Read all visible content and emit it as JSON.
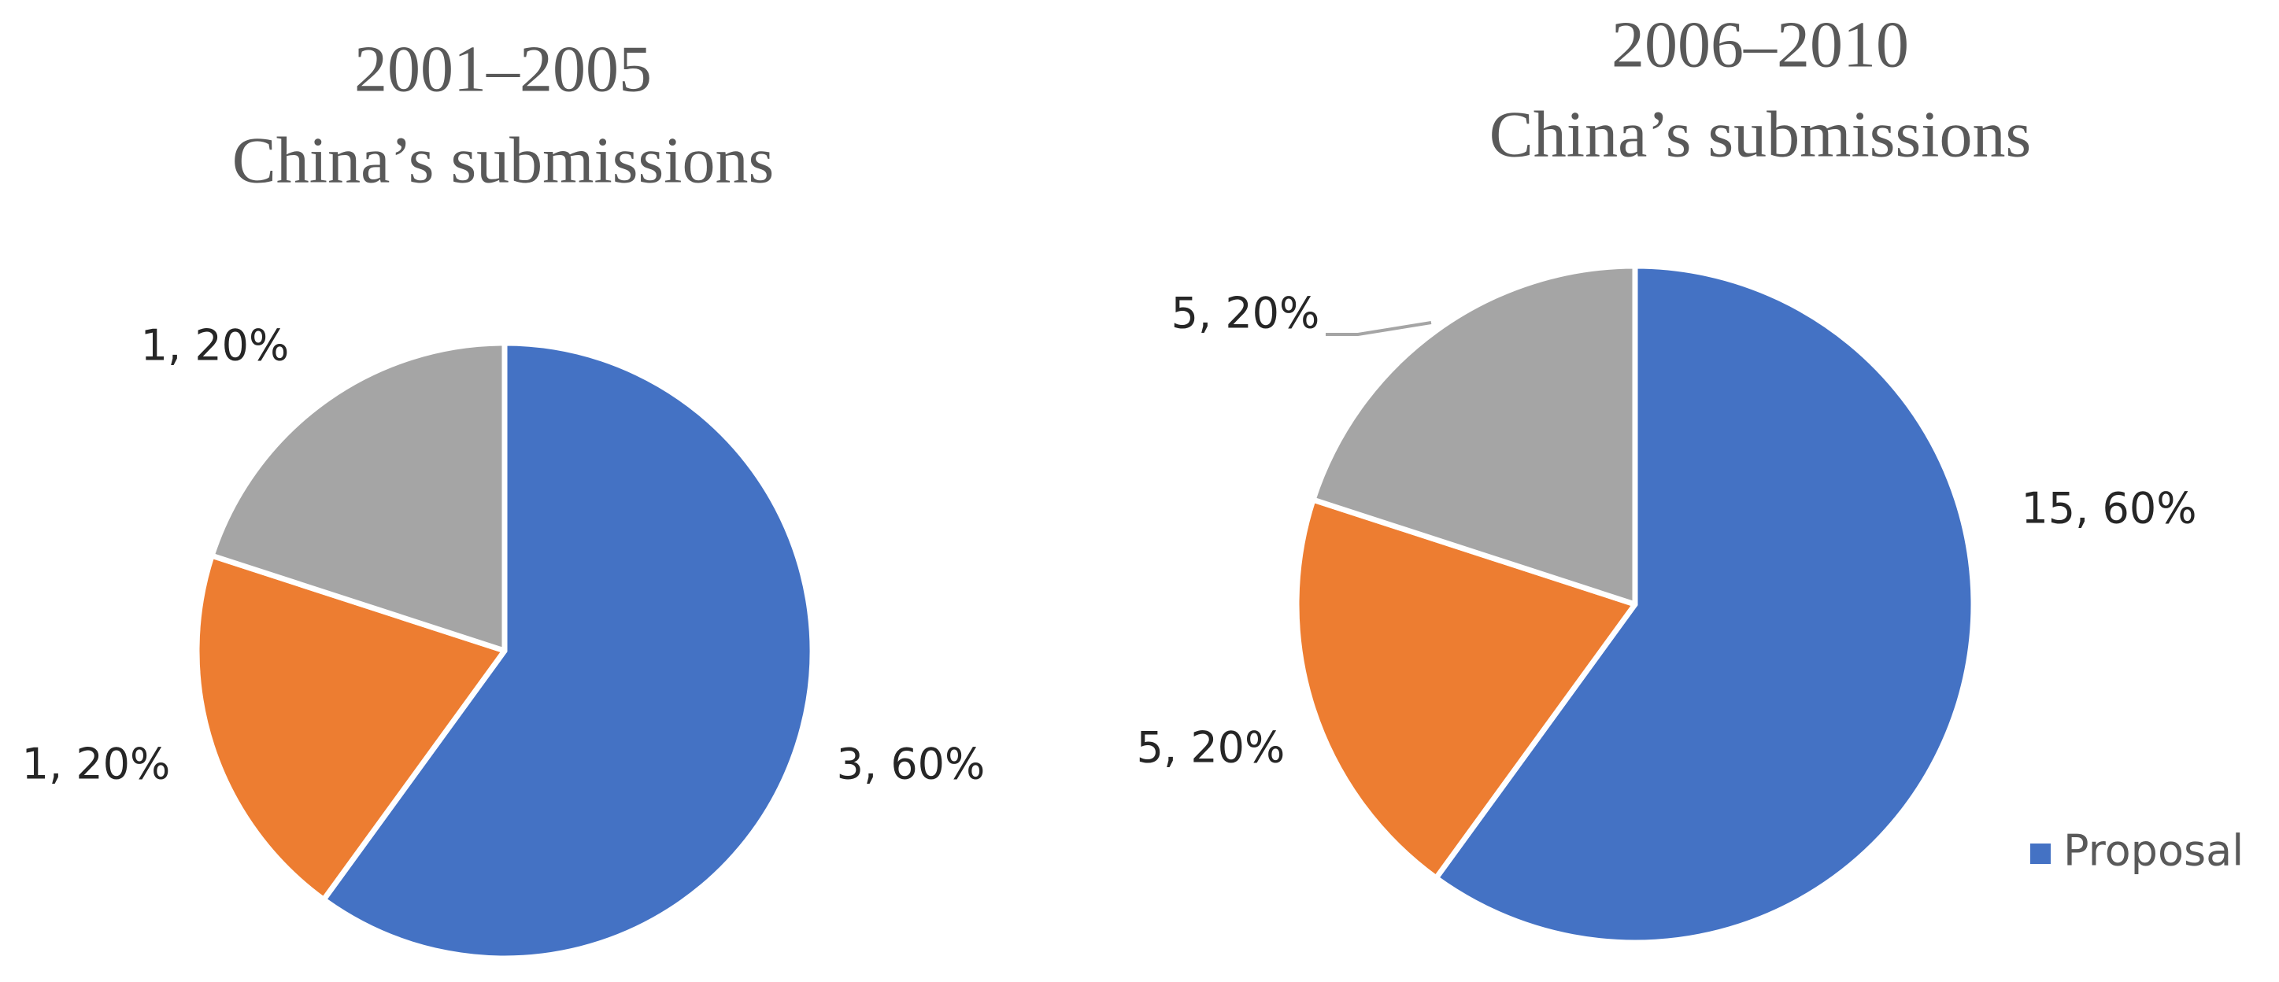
{
  "chart_data": [
    {
      "type": "pie",
      "title": "2001–2005",
      "subtitle": "China’s submissions",
      "categories": [
        "Proposal",
        null,
        null
      ],
      "values": [
        3,
        1,
        1
      ],
      "value_labels": [
        "3, 60%",
        "1, 20%",
        "1, 20%"
      ],
      "colors": [
        "#4472c4",
        "#ed7d31",
        "#a5a5a5"
      ]
    },
    {
      "type": "pie",
      "title": "2006–2010",
      "subtitle": "China’s submissions",
      "categories": [
        "Proposal",
        null,
        null
      ],
      "values": [
        15,
        5,
        5
      ],
      "value_labels": [
        "15, 60%",
        "5, 20%",
        "5, 20%"
      ],
      "colors": [
        "#4472c4",
        "#ed7d31",
        "#a5a5a5"
      ],
      "legend": "right"
    }
  ]
}
